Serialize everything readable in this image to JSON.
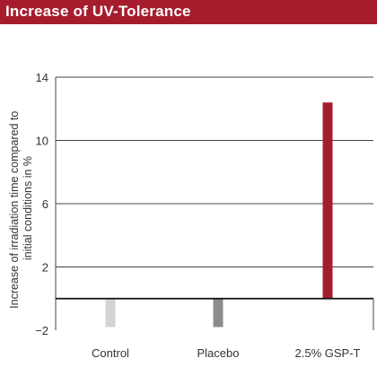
{
  "header": {
    "title": "Increase of UV-Tolerance"
  },
  "chart_data": {
    "type": "bar",
    "title": "Increase of UV-Tolerance",
    "categories": [
      "Control",
      "Placebo",
      "2.5% GSP-T"
    ],
    "values": [
      -1.8,
      -1.8,
      12.4
    ],
    "bar_colors": [
      "#d4d4d4",
      "#8c8c8c",
      "#a51d2d"
    ],
    "xlabel": "",
    "ylabel_lines": [
      "Increase of irradiation time compared to",
      "initial conditions in %"
    ],
    "yticks": [
      14,
      10,
      6,
      2,
      -2
    ],
    "ytick_labels": [
      "14",
      "10",
      "6",
      "2",
      "−2"
    ],
    "ylim": [
      -2,
      14
    ],
    "grid": true
  }
}
